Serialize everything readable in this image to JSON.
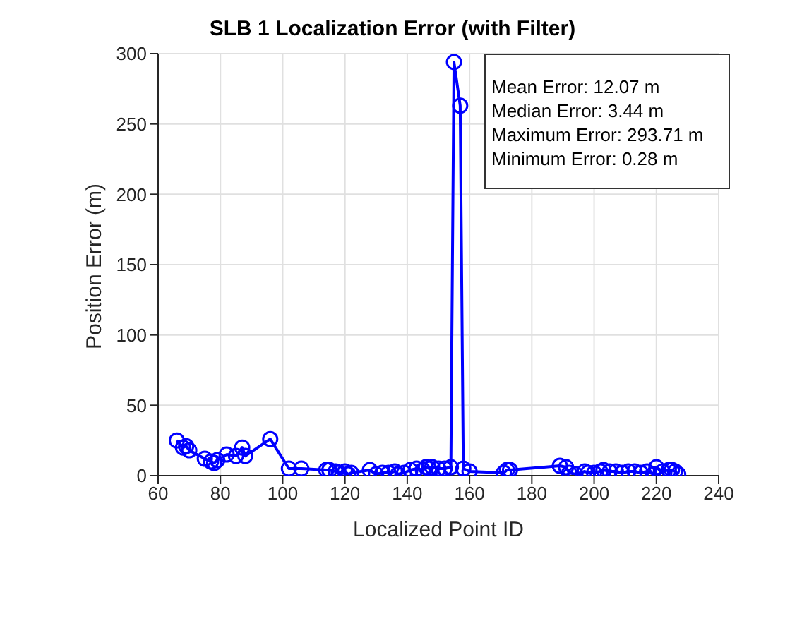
{
  "chart_data": {
    "type": "line",
    "title": "SLB 1 Localization Error (with Filter)",
    "xlabel": "Localized Point ID",
    "ylabel": "Position Error (m)",
    "x": [
      66,
      68,
      69,
      70,
      75,
      77,
      78,
      79,
      82,
      85,
      87,
      88,
      96,
      102,
      106,
      114,
      115,
      117,
      118,
      120,
      121,
      122,
      128,
      130,
      132,
      134,
      136,
      137,
      139,
      141,
      143,
      145,
      146,
      147,
      148,
      150,
      152,
      154,
      155,
      157,
      158,
      160,
      171,
      172,
      173,
      189,
      191,
      192,
      194,
      197,
      198,
      200,
      202,
      203,
      205,
      207,
      209,
      211,
      213,
      215,
      217,
      219,
      220,
      222,
      224,
      225,
      226,
      227
    ],
    "series": [
      {
        "color": "#0000ff",
        "values": [
          25,
          20,
          21,
          18,
          12,
          10,
          9,
          11,
          15,
          14,
          20,
          14,
          26,
          5,
          5,
          4,
          4,
          3,
          2,
          3,
          1,
          2,
          4,
          1,
          2,
          2,
          3,
          1,
          2,
          4,
          5,
          4,
          6,
          5,
          6,
          5,
          5,
          6,
          294,
          263,
          5,
          3,
          2,
          4,
          4,
          7,
          6,
          2,
          1,
          3,
          2,
          2,
          3,
          4,
          3,
          3,
          2,
          3,
          3,
          2,
          3,
          1,
          6,
          3,
          4,
          4,
          3,
          1
        ]
      }
    ],
    "xlim": [
      60,
      240
    ],
    "xticks": [
      60,
      80,
      100,
      120,
      140,
      160,
      180,
      200,
      220,
      240
    ],
    "ylim": [
      0,
      300
    ],
    "yticks": [
      0,
      50,
      100,
      150,
      200,
      250,
      300
    ],
    "grid": true,
    "marker": "circle",
    "line_style": "solid",
    "legend": false,
    "annotations": [
      "Mean Error: 12.07 m",
      "Median Error: 3.44 m",
      "Maximum Error: 293.71 m",
      "Minimum Error: 0.28 m"
    ]
  }
}
